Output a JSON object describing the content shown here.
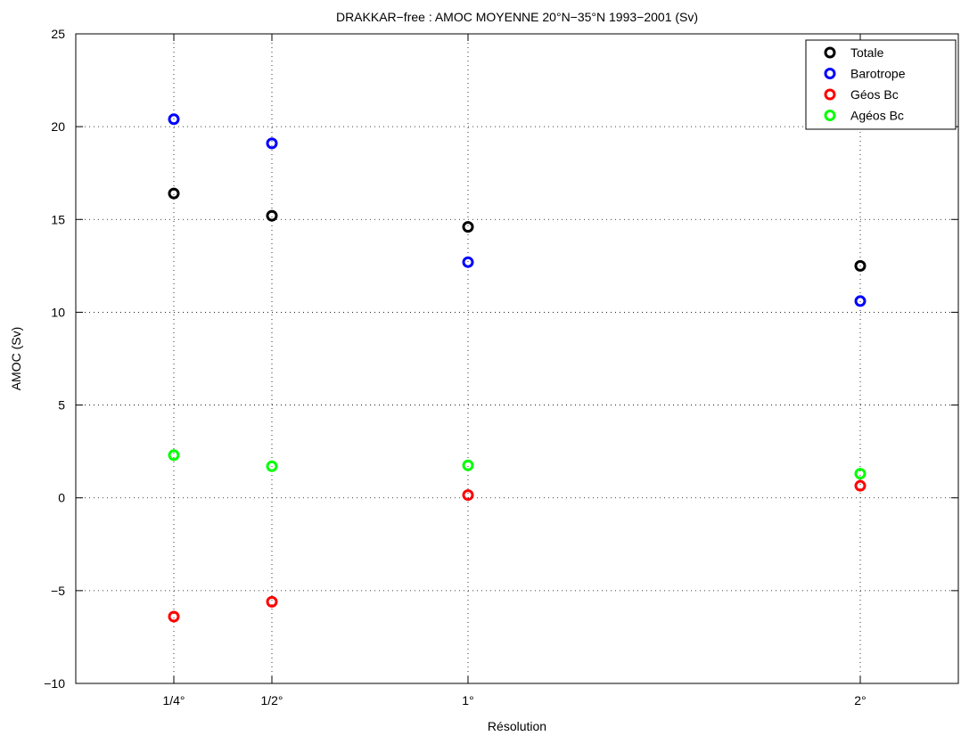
{
  "chart_data": {
    "type": "scatter",
    "title": "DRAKKAR−free : AMOC MOYENNE 20°N−35°N 1993−2001 (Sv)",
    "xlabel": "Résolution",
    "ylabel": "AMOC (Sv)",
    "x_tick_values": [
      0.25,
      0.5,
      1,
      2
    ],
    "x_tick_labels": [
      "1/4°",
      "1/2°",
      "1°",
      "2°"
    ],
    "xlim": [
      0,
      2.25
    ],
    "ylim": [
      -10,
      25
    ],
    "y_ticks": [
      -10,
      -5,
      0,
      5,
      10,
      15,
      20,
      25
    ],
    "y_tick_labels": [
      "−10",
      "−5",
      "0",
      "5",
      "10",
      "15",
      "20",
      "25"
    ],
    "grid": true,
    "legend_position": "top-right",
    "series": [
      {
        "name": "Totale",
        "color": "#000000",
        "x": [
          0.25,
          0.5,
          1,
          2
        ],
        "y": [
          16.4,
          15.2,
          14.6,
          12.5
        ]
      },
      {
        "name": "Barotrope",
        "color": "#0000ff",
        "x": [
          0.25,
          0.5,
          1,
          2
        ],
        "y": [
          20.4,
          19.1,
          12.7,
          10.6
        ]
      },
      {
        "name": "Géos Bc",
        "color": "#ff0000",
        "x": [
          0.25,
          0.5,
          1,
          2
        ],
        "y": [
          -6.4,
          -5.6,
          0.15,
          0.65
        ]
      },
      {
        "name": "Agéos Bc",
        "color": "#00ff00",
        "x": [
          0.25,
          0.5,
          1,
          2
        ],
        "y": [
          2.3,
          1.7,
          1.75,
          1.3
        ]
      }
    ]
  }
}
